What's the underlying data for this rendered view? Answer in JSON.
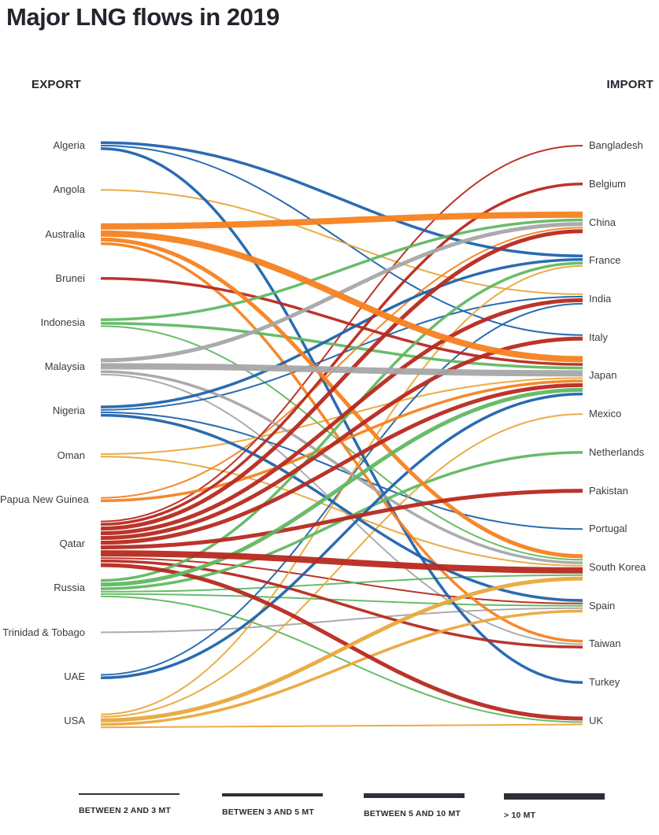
{
  "page": {
    "title": "Major LNG flows in 2019"
  },
  "columns": {
    "export_label": "EXPORT",
    "import_label": "IMPORT"
  },
  "legend": {
    "items": [
      {
        "label": "BETWEEN 2 AND 3 MT",
        "size": "2-3"
      },
      {
        "label": "BETWEEN 3 AND 5 MT",
        "size": "3-5"
      },
      {
        "label": "BETWEEN 5 AND 10 MT",
        "size": "5-10"
      },
      {
        "label": "> 10 MT",
        "size": ">10"
      }
    ]
  },
  "chart_data": {
    "type": "flow",
    "title": "Major LNG flows in 2019",
    "units": "MT",
    "size_categories": [
      "2-3",
      "3-5",
      "5-10",
      ">10"
    ],
    "exporters": [
      "Algeria",
      "Angola",
      "Australia",
      "Brunei",
      "Indonesia",
      "Malaysia",
      "Nigeria",
      "Oman",
      "Papua New Guinea",
      "Qatar",
      "Russia",
      "Trinidad & Tobago",
      "UAE",
      "USA"
    ],
    "importers": [
      "Bangladesh",
      "Belgium",
      "China",
      "France",
      "India",
      "Italy",
      "Japan",
      "Mexico",
      "Netherlands",
      "Pakistan",
      "Portugal",
      "South Korea",
      "Spain",
      "Taiwan",
      "Turkey",
      "UK"
    ],
    "exporter_colors": {
      "Algeria": "#1f63ad",
      "Angola": "#e9a83b",
      "Australia": "#f58220",
      "Brunei": "#b7291f",
      "Indonesia": "#61b861",
      "Malaysia": "#a7a7a7",
      "Nigeria": "#1f63ad",
      "Oman": "#e9a83b",
      "Papua New Guinea": "#f58220",
      "Qatar": "#b7291f",
      "Russia": "#61b861",
      "Trinidad & Tobago": "#a7a7a7",
      "UAE": "#1f63ad",
      "USA": "#e9a83b"
    },
    "flows": [
      {
        "from": "Algeria",
        "to": "France",
        "size": "3-5"
      },
      {
        "from": "Algeria",
        "to": "Italy",
        "size": "2-3"
      },
      {
        "from": "Algeria",
        "to": "Turkey",
        "size": "3-5"
      },
      {
        "from": "Angola",
        "to": "India",
        "size": "2-3"
      },
      {
        "from": "Australia",
        "to": "China",
        "size": ">10"
      },
      {
        "from": "Australia",
        "to": "Japan",
        "size": ">10"
      },
      {
        "from": "Australia",
        "to": "South Korea",
        "size": "5-10"
      },
      {
        "from": "Australia",
        "to": "Taiwan",
        "size": "3-5"
      },
      {
        "from": "Brunei",
        "to": "Japan",
        "size": "3-5"
      },
      {
        "from": "Indonesia",
        "to": "China",
        "size": "3-5"
      },
      {
        "from": "Indonesia",
        "to": "Japan",
        "size": "3-5"
      },
      {
        "from": "Indonesia",
        "to": "South Korea",
        "size": "2-3"
      },
      {
        "from": "Malaysia",
        "to": "China",
        "size": "5-10"
      },
      {
        "from": "Malaysia",
        "to": "Japan",
        "size": ">10"
      },
      {
        "from": "Malaysia",
        "to": "South Korea",
        "size": "3-5"
      },
      {
        "from": "Malaysia",
        "to": "Taiwan",
        "size": "2-3"
      },
      {
        "from": "Nigeria",
        "to": "France",
        "size": "3-5"
      },
      {
        "from": "Nigeria",
        "to": "India",
        "size": "2-3"
      },
      {
        "from": "Nigeria",
        "to": "Portugal",
        "size": "2-3"
      },
      {
        "from": "Nigeria",
        "to": "Spain",
        "size": "3-5"
      },
      {
        "from": "Oman",
        "to": "Japan",
        "size": "2-3"
      },
      {
        "from": "Oman",
        "to": "South Korea",
        "size": "2-3"
      },
      {
        "from": "Papua New Guinea",
        "to": "China",
        "size": "2-3"
      },
      {
        "from": "Papua New Guinea",
        "to": "Japan",
        "size": "3-5"
      },
      {
        "from": "Qatar",
        "to": "Bangladesh",
        "size": "2-3"
      },
      {
        "from": "Qatar",
        "to": "Belgium",
        "size": "3-5"
      },
      {
        "from": "Qatar",
        "to": "China",
        "size": "5-10"
      },
      {
        "from": "Qatar",
        "to": "India",
        "size": "5-10"
      },
      {
        "from": "Qatar",
        "to": "Italy",
        "size": "5-10"
      },
      {
        "from": "Qatar",
        "to": "Japan",
        "size": "5-10"
      },
      {
        "from": "Qatar",
        "to": "Pakistan",
        "size": "5-10"
      },
      {
        "from": "Qatar",
        "to": "South Korea",
        "size": ">10"
      },
      {
        "from": "Qatar",
        "to": "Spain",
        "size": "2-3"
      },
      {
        "from": "Qatar",
        "to": "Taiwan",
        "size": "3-5"
      },
      {
        "from": "Qatar",
        "to": "UK",
        "size": "5-10"
      },
      {
        "from": "Russia",
        "to": "France",
        "size": "3-5"
      },
      {
        "from": "Russia",
        "to": "Japan",
        "size": "5-10"
      },
      {
        "from": "Russia",
        "to": "Netherlands",
        "size": "3-5"
      },
      {
        "from": "Russia",
        "to": "South Korea",
        "size": "2-3"
      },
      {
        "from": "Russia",
        "to": "Spain",
        "size": "2-3"
      },
      {
        "from": "Russia",
        "to": "UK",
        "size": "2-3"
      },
      {
        "from": "Trinidad & Tobago",
        "to": "Spain",
        "size": "2-3"
      },
      {
        "from": "UAE",
        "to": "India",
        "size": "2-3"
      },
      {
        "from": "UAE",
        "to": "Japan",
        "size": "3-5"
      },
      {
        "from": "USA",
        "to": "France",
        "size": "2-3"
      },
      {
        "from": "USA",
        "to": "Mexico",
        "size": "2-3"
      },
      {
        "from": "USA",
        "to": "South Korea",
        "size": "5-10"
      },
      {
        "from": "USA",
        "to": "Spain",
        "size": "3-5"
      },
      {
        "from": "USA",
        "to": "UK",
        "size": "2-3"
      }
    ]
  }
}
